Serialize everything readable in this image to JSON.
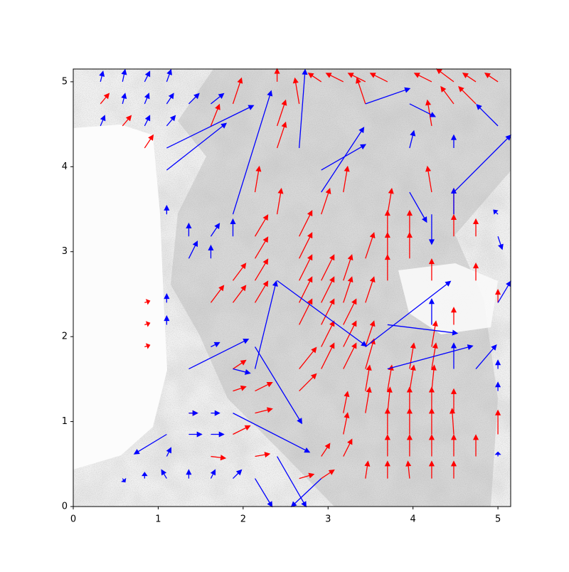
{
  "chart_data": {
    "type": "quiver",
    "xlim": [
      0,
      5.15
    ],
    "ylim": [
      0,
      5.15
    ],
    "xticks": [
      0,
      1,
      2,
      3,
      4,
      5
    ],
    "yticks": [
      0,
      1,
      2,
      3,
      4,
      5
    ],
    "series": [
      {
        "color": "red",
        "x": [
          2.66,
          2.92,
          3.44,
          3.7,
          3.96,
          4.22,
          4.48,
          1.62,
          2.14,
          2.92,
          3.18,
          3.7,
          3.96,
          4.22,
          4.48,
          4.74,
          1.88,
          3.18,
          3.7,
          3.96,
          4.22,
          4.48,
          5.0,
          1.36,
          2.14,
          3.18,
          3.44,
          3.7,
          3.96,
          4.22,
          4.48,
          1.88,
          2.14,
          2.66,
          3.44,
          3.7,
          3.96,
          4.22,
          1.88,
          2.66,
          2.92,
          3.18,
          3.44,
          3.96,
          4.22,
          0.84,
          2.92,
          3.18,
          3.44,
          4.22,
          0.84,
          2.66,
          2.92,
          3.18,
          4.48,
          0.84,
          1.62,
          1.88,
          2.14,
          2.66,
          2.92,
          3.18,
          3.44,
          5.0,
          1.88,
          2.14,
          2.66,
          2.92,
          3.18,
          3.7,
          4.22,
          4.74,
          2.14,
          2.66,
          3.44,
          3.7,
          3.96,
          2.14,
          2.66,
          3.7,
          3.96,
          4.48,
          4.74,
          2.4,
          2.92,
          3.7,
          4.48,
          2.14,
          3.18,
          4.22,
          2.4,
          1.62,
          2.4,
          4.22,
          1.88,
          2.66,
          3.44,
          4.48,
          4.74,
          2.4,
          2.92,
          3.18,
          3.44,
          3.7,
          4.22,
          4.48,
          4.74,
          5.0,
          0.32,
          0.58,
          0.84
        ],
        "y": [
          0.33,
          0.33,
          0.33,
          0.33,
          0.33,
          0.33,
          0.33,
          0.59,
          0.59,
          0.59,
          0.59,
          0.59,
          0.59,
          0.59,
          0.59,
          0.59,
          0.85,
          0.85,
          0.85,
          0.85,
          0.85,
          0.85,
          0.85,
          1.1,
          1.1,
          1.1,
          1.1,
          1.1,
          1.1,
          1.1,
          1.1,
          1.36,
          1.36,
          1.36,
          1.36,
          1.36,
          1.36,
          1.36,
          1.62,
          1.62,
          1.62,
          1.62,
          1.62,
          1.62,
          1.62,
          1.88,
          1.88,
          1.88,
          1.88,
          1.88,
          2.14,
          2.14,
          2.14,
          2.14,
          2.14,
          2.4,
          2.4,
          2.4,
          2.4,
          2.4,
          2.4,
          2.4,
          2.4,
          2.4,
          2.66,
          2.66,
          2.66,
          2.66,
          2.66,
          2.66,
          2.66,
          2.66,
          2.92,
          2.92,
          2.92,
          2.92,
          2.92,
          3.18,
          3.18,
          3.18,
          3.18,
          3.18,
          3.18,
          3.44,
          3.44,
          3.44,
          3.44,
          3.7,
          3.7,
          3.7,
          4.22,
          4.48,
          4.48,
          4.48,
          4.74,
          4.74,
          4.74,
          4.74,
          4.74,
          5.0,
          5.0,
          5.0,
          5.0,
          5.0,
          5.0,
          5.0,
          5.0,
          5.0,
          4.74,
          4.48,
          4.22
        ],
        "u": [
          0.17,
          0.15,
          0.03,
          0,
          -0.02,
          0,
          0,
          0.17,
          0.17,
          0.1,
          0.1,
          0,
          0,
          0,
          0,
          0,
          0.2,
          0.05,
          0,
          0,
          0,
          -0.02,
          0,
          0.1,
          0.2,
          0.05,
          0.05,
          0.03,
          0,
          0,
          0,
          0.15,
          0.2,
          0.2,
          0.05,
          0.05,
          0.05,
          0.03,
          0.15,
          0.2,
          0.15,
          0.15,
          0.1,
          0.05,
          0.05,
          0.06,
          0.15,
          0.15,
          0.1,
          0.05,
          0.06,
          0.15,
          0.15,
          0.15,
          0,
          0.06,
          0.15,
          0.15,
          0.15,
          0.15,
          0.15,
          0.1,
          0.1,
          0,
          0.15,
          0.15,
          0.15,
          0.15,
          0.1,
          0,
          0,
          0,
          0.15,
          0.15,
          0.1,
          0,
          0,
          0.15,
          0.15,
          0,
          0,
          0,
          0,
          0.05,
          0.1,
          0.05,
          0,
          0.05,
          0.05,
          -0.05,
          0.1,
          0.1,
          0.1,
          -0.05,
          0.1,
          -0.05,
          -0.1,
          -0.15,
          -0.2,
          0,
          -0.15,
          -0.2,
          -0.2,
          -0.2,
          -0.2,
          -0.2,
          -0.15,
          -0.15,
          0.1,
          0.1,
          0.1
        ],
        "v": [
          0.05,
          0.1,
          0.2,
          0.2,
          0.2,
          0.2,
          0.2,
          -0.02,
          0.03,
          0.15,
          0.2,
          0.25,
          0.25,
          0.25,
          0.25,
          0.25,
          0.1,
          0.25,
          0.3,
          0.3,
          0.3,
          0.3,
          0.28,
          0,
          0.05,
          0.25,
          0.3,
          0.3,
          0.3,
          0.3,
          0.28,
          0.05,
          0.1,
          0.2,
          0.3,
          0.3,
          0.3,
          0.3,
          0.1,
          0.25,
          0.3,
          0.3,
          0.35,
          0.3,
          0.3,
          0.02,
          0.3,
          0.3,
          0.3,
          0.3,
          0.02,
          0.3,
          0.3,
          0.3,
          0.2,
          0.02,
          0.2,
          0.2,
          0.25,
          0.3,
          0.3,
          0.3,
          0.3,
          0.15,
          0.2,
          0.25,
          0.3,
          0.3,
          0.3,
          0.3,
          0.25,
          0.2,
          0.25,
          0.3,
          0.3,
          0.3,
          0.3,
          0.25,
          0.3,
          0.3,
          0.3,
          0.25,
          0.2,
          0.3,
          0.3,
          0.3,
          0.3,
          0.3,
          0.3,
          0.3,
          0.3,
          0.25,
          0.3,
          0.3,
          0.3,
          0.3,
          0.3,
          0.2,
          0.2,
          0.15,
          0.1,
          0.1,
          0.1,
          0.1,
          0.1,
          0.15,
          0.1,
          0.1,
          0.12,
          0.12,
          0.15
        ]
      },
      {
        "color": "blue",
        "x": [
          0.32,
          0.58,
          0.84,
          1.1,
          0.32,
          0.58,
          0.84,
          0.84,
          1.1,
          1.1,
          1.36,
          1.62,
          1.1,
          1.1,
          1.88,
          2.66,
          2.92,
          2.92,
          3.44,
          1.36,
          2.4,
          3.44,
          3.7,
          3.7,
          1.88,
          2.4,
          2.14,
          2.92,
          1.1,
          2.14,
          2.14,
          4.74,
          4.48,
          1.62,
          1.36,
          1.62,
          1.36,
          1.62,
          1.88,
          0.58,
          0.84,
          1.1,
          1.1,
          1.36,
          1.62,
          1.88,
          1.1,
          1.1,
          1.1,
          1.36,
          1.62,
          1.88,
          1.36,
          1.62,
          5.0,
          5.0,
          5.0,
          5.0,
          5.0,
          5.0,
          4.48,
          4.22,
          4.22,
          3.96,
          4.48,
          3.96,
          4.48,
          5.0,
          3.96
        ],
        "y": [
          5.0,
          5.0,
          5.0,
          5.0,
          4.48,
          4.74,
          4.74,
          4.48,
          4.74,
          4.48,
          4.74,
          4.74,
          3.96,
          4.22,
          3.44,
          4.22,
          3.7,
          3.96,
          4.74,
          1.62,
          2.66,
          1.88,
          1.62,
          2.14,
          1.1,
          0.59,
          0.33,
          0.33,
          0.85,
          1.62,
          1.88,
          1.62,
          3.7,
          1.88,
          1.1,
          1.1,
          0.85,
          0.85,
          1.62,
          0.33,
          0.33,
          0.59,
          0.33,
          0.33,
          0.33,
          0.33,
          2.14,
          2.4,
          3.44,
          3.18,
          3.18,
          3.18,
          2.92,
          2.92,
          1.36,
          1.62,
          0.59,
          3.44,
          3.18,
          2.4,
          1.62,
          2.14,
          3.44,
          3.7,
          3.44,
          4.22,
          4.22,
          4.48,
          4.74
        ],
        "u": [
          0.03,
          0.03,
          0.06,
          0.05,
          0.05,
          0.03,
          0.05,
          0.06,
          0.08,
          0.1,
          0.12,
          0.15,
          0.7,
          1.02,
          0.45,
          0.07,
          0.5,
          0.52,
          0.52,
          0.7,
          1.05,
          1.0,
          1.0,
          0.82,
          0.9,
          0.34,
          0.2,
          -0.35,
          -0.38,
          0.25,
          0.55,
          0.24,
          0.67,
          0.1,
          0.1,
          0.1,
          0.15,
          0.15,
          0.2,
          0.03,
          0,
          0.05,
          -0.06,
          0,
          0.05,
          0.1,
          0,
          0,
          0,
          0,
          0.1,
          0,
          0.1,
          0,
          0,
          0,
          0,
          -0.05,
          0.05,
          0.15,
          0,
          0,
          0,
          0.2,
          0,
          0.05,
          0,
          -0.25,
          0.3
        ],
        "v": [
          0.12,
          0.14,
          0.12,
          0.14,
          0.12,
          0.12,
          0.12,
          0.12,
          0.12,
          0.12,
          0.12,
          0.12,
          0.55,
          0.5,
          1.45,
          0.92,
          0.76,
          0.3,
          0.18,
          0.35,
          -0.77,
          0.77,
          0.27,
          -0.1,
          -0.46,
          -0.59,
          -0.33,
          -0.33,
          -0.23,
          1.03,
          -0.9,
          0.28,
          0.67,
          0.05,
          0,
          0,
          0,
          0,
          -0.05,
          -0.04,
          0.07,
          0.1,
          0.1,
          0.1,
          0.1,
          0.1,
          0.1,
          0.1,
          0.1,
          0.15,
          0.15,
          0.2,
          0.2,
          0.15,
          0.1,
          0.1,
          0.05,
          0.05,
          -0.15,
          0.25,
          0.3,
          0.3,
          -0.35,
          -0.35,
          0.3,
          0.2,
          0.15,
          0.25,
          -0.15
        ]
      }
    ]
  }
}
